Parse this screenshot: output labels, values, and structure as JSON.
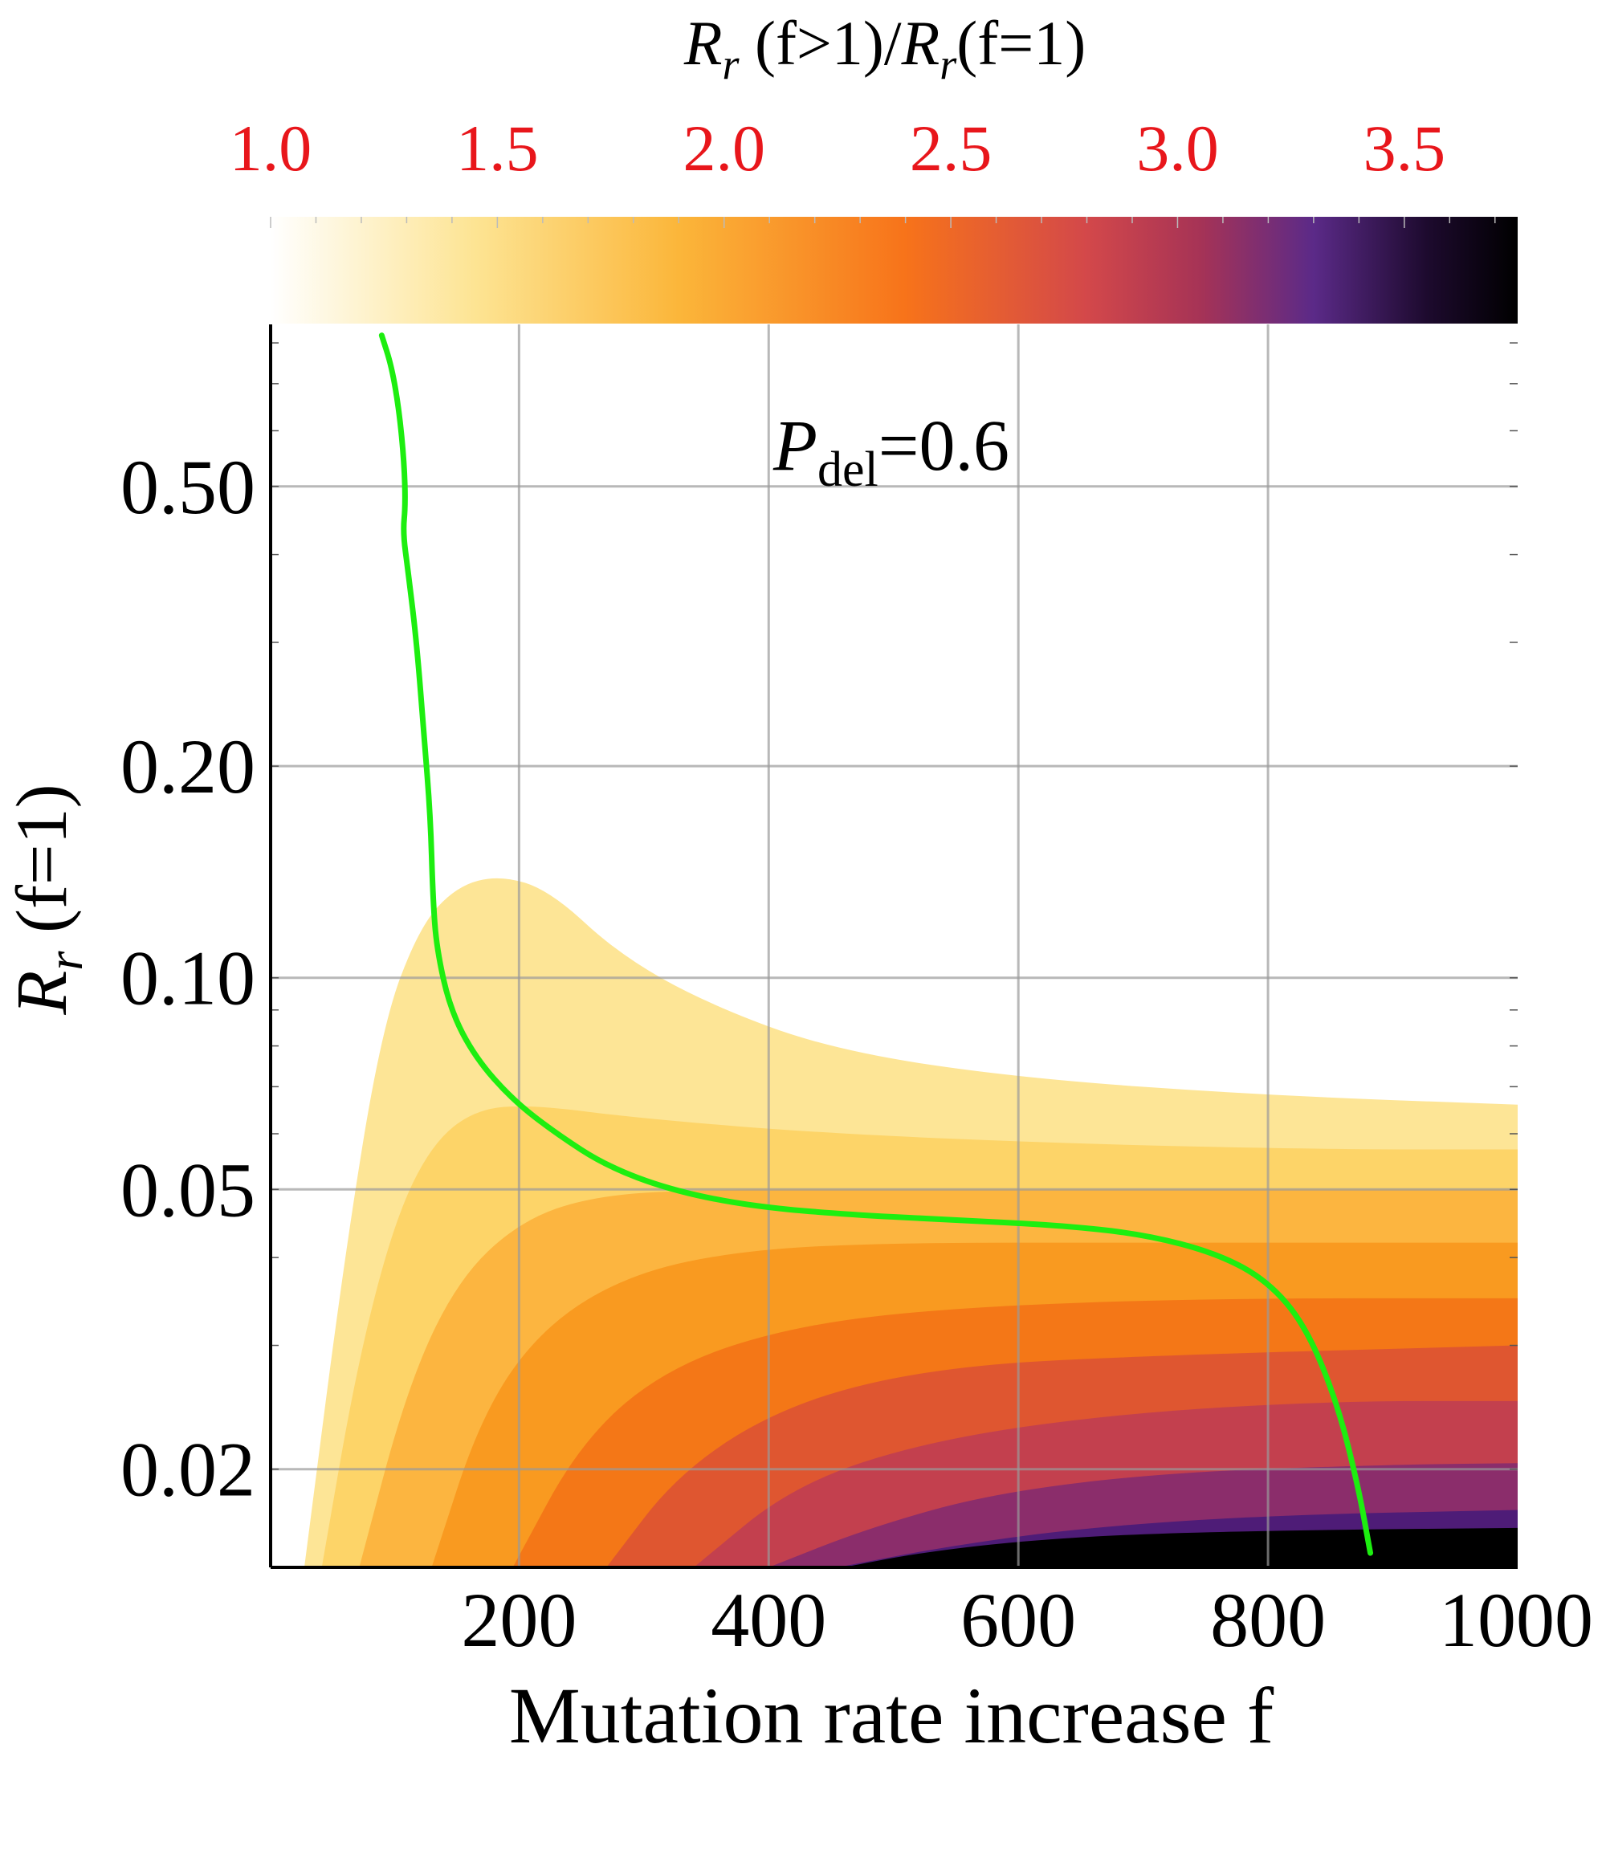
{
  "chart_data": {
    "type": "heatmap",
    "xlabel": "Mutation rate increase f",
    "ylabel": {
      "main": "R",
      "sub": "r",
      "suffix": " (f=1)"
    },
    "xlim": [
      1,
      1000
    ],
    "ylim": [
      0.0145,
      0.85
    ],
    "y_scale": "log",
    "x_ticks": [
      200,
      400,
      600,
      800,
      1000
    ],
    "x_tick_labels": [
      "200",
      "400",
      "600",
      "800",
      "1000"
    ],
    "y_ticks": [
      0.02,
      0.05,
      0.1,
      0.2,
      0.5
    ],
    "y_tick_labels": [
      "0.02",
      "0.05",
      "0.10",
      "0.20",
      "0.50"
    ],
    "grid": true,
    "annotation": {
      "main": "P",
      "sub": "del",
      "suffix": "=0.6"
    },
    "colorbar": {
      "title": {
        "r1": "R",
        "sub1": "r",
        "mid": " (f>1)/",
        "r2": "R",
        "sub2": "r",
        "end": "(f=1)"
      },
      "range": [
        1.0,
        3.75
      ],
      "ticks": [
        1.0,
        1.5,
        2.0,
        2.5,
        3.0,
        3.5
      ],
      "tick_labels": [
        "1.0",
        "1.5",
        "2.0",
        "2.5",
        "3.0",
        "3.5"
      ],
      "tick_color": "#e8161b",
      "placement": "top",
      "stops": [
        {
          "v": 1.0,
          "color": "#ffffff"
        },
        {
          "v": 1.45,
          "color": "#fde493"
        },
        {
          "v": 1.9,
          "color": "#fbb63a"
        },
        {
          "v": 2.4,
          "color": "#f7731a"
        },
        {
          "v": 2.8,
          "color": "#d3484a"
        },
        {
          "v": 3.05,
          "color": "#a63356"
        },
        {
          "v": 3.3,
          "color": "#5b2a88"
        },
        {
          "v": 3.55,
          "color": "#1d0a2e"
        },
        {
          "v": 3.75,
          "color": "#000000"
        }
      ]
    },
    "contour_levels": [
      {
        "level": 1.4,
        "color": "#fde596",
        "boundary": [
          [
            28,
            0.0145
          ],
          [
            60,
            0.04
          ],
          [
            90,
            0.085
          ],
          [
            120,
            0.118
          ],
          [
            150,
            0.135
          ],
          [
            185,
            0.14
          ],
          [
            225,
            0.133
          ],
          [
            280,
            0.108
          ],
          [
            350,
            0.092
          ],
          [
            450,
            0.079
          ],
          [
            600,
            0.072
          ],
          [
            800,
            0.068
          ],
          [
            1000,
            0.066
          ]
        ]
      },
      {
        "level": 1.6,
        "color": "#fdd468",
        "boundary": [
          [
            42,
            0.0145
          ],
          [
            70,
            0.028
          ],
          [
            100,
            0.045
          ],
          [
            130,
            0.058
          ],
          [
            165,
            0.065
          ],
          [
            210,
            0.066
          ],
          [
            300,
            0.063
          ],
          [
            450,
            0.06
          ],
          [
            650,
            0.058
          ],
          [
            850,
            0.057
          ],
          [
            1000,
            0.057
          ]
        ]
      },
      {
        "level": 1.8,
        "color": "#fcb540",
        "boundary": [
          [
            72,
            0.0145
          ],
          [
            110,
            0.026
          ],
          [
            150,
            0.037
          ],
          [
            200,
            0.045
          ],
          [
            260,
            0.049
          ],
          [
            350,
            0.05
          ],
          [
            500,
            0.05
          ],
          [
            700,
            0.05
          ],
          [
            1000,
            0.05
          ]
        ]
      },
      {
        "level": 2.0,
        "color": "#f99a20",
        "boundary": [
          [
            130,
            0.0145
          ],
          [
            170,
            0.024
          ],
          [
            220,
            0.032
          ],
          [
            290,
            0.038
          ],
          [
            380,
            0.041
          ],
          [
            500,
            0.042
          ],
          [
            700,
            0.042
          ],
          [
            1000,
            0.042
          ]
        ]
      },
      {
        "level": 2.3,
        "color": "#f47717",
        "boundary": [
          [
            195,
            0.0145
          ],
          [
            250,
            0.022
          ],
          [
            320,
            0.028
          ],
          [
            420,
            0.032
          ],
          [
            550,
            0.034
          ],
          [
            750,
            0.035
          ],
          [
            1000,
            0.035
          ]
        ]
      },
      {
        "level": 2.6,
        "color": "#df5630",
        "boundary": [
          [
            270,
            0.0145
          ],
          [
            330,
            0.02
          ],
          [
            420,
            0.025
          ],
          [
            540,
            0.028
          ],
          [
            700,
            0.029
          ],
          [
            1000,
            0.03
          ]
        ]
      },
      {
        "level": 2.9,
        "color": "#c3404e",
        "boundary": [
          [
            340,
            0.0145
          ],
          [
            420,
            0.019
          ],
          [
            530,
            0.022
          ],
          [
            680,
            0.024
          ],
          [
            850,
            0.025
          ],
          [
            1000,
            0.025
          ]
        ]
      },
      {
        "level": 3.2,
        "color": "#8b2d6b",
        "boundary": [
          [
            400,
            0.0145
          ],
          [
            480,
            0.0165
          ],
          [
            580,
            0.0185
          ],
          [
            720,
            0.0198
          ],
          [
            900,
            0.0203
          ],
          [
            1000,
            0.0204
          ]
        ]
      },
      {
        "level": 3.45,
        "color": "#4e1c77",
        "boundary": [
          [
            455,
            0.0145
          ],
          [
            540,
            0.0155
          ],
          [
            650,
            0.0165
          ],
          [
            800,
            0.0172
          ],
          [
            1000,
            0.0175
          ]
        ]
      },
      {
        "level": 3.7,
        "color": "#000000",
        "boundary": [
          [
            460,
            0.0145
          ],
          [
            520,
            0.0152
          ],
          [
            600,
            0.0158
          ],
          [
            700,
            0.0162
          ],
          [
            850,
            0.0164
          ],
          [
            1000,
            0.0165
          ]
        ]
      }
    ],
    "series": [
      {
        "color": "#1dee10",
        "points": [
          [
            90,
            0.82
          ],
          [
            98,
            0.74
          ],
          [
            104,
            0.64
          ],
          [
            108,
            0.54
          ],
          [
            109,
            0.47
          ],
          [
            107,
            0.43
          ],
          [
            111,
            0.38
          ],
          [
            118,
            0.3
          ],
          [
            124,
            0.22
          ],
          [
            129,
            0.17
          ],
          [
            131,
            0.13
          ],
          [
            134,
            0.11
          ],
          [
            145,
            0.09
          ],
          [
            165,
            0.077
          ],
          [
            195,
            0.067
          ],
          [
            230,
            0.06
          ],
          [
            270,
            0.054
          ],
          [
            320,
            0.05
          ],
          [
            380,
            0.0475
          ],
          [
            450,
            0.0462
          ],
          [
            550,
            0.0452
          ],
          [
            630,
            0.0445
          ],
          [
            700,
            0.0432
          ],
          [
            760,
            0.0405
          ],
          [
            800,
            0.037
          ],
          [
            830,
            0.032
          ],
          [
            855,
            0.025
          ],
          [
            872,
            0.019
          ],
          [
            882,
            0.0152
          ]
        ]
      }
    ]
  }
}
